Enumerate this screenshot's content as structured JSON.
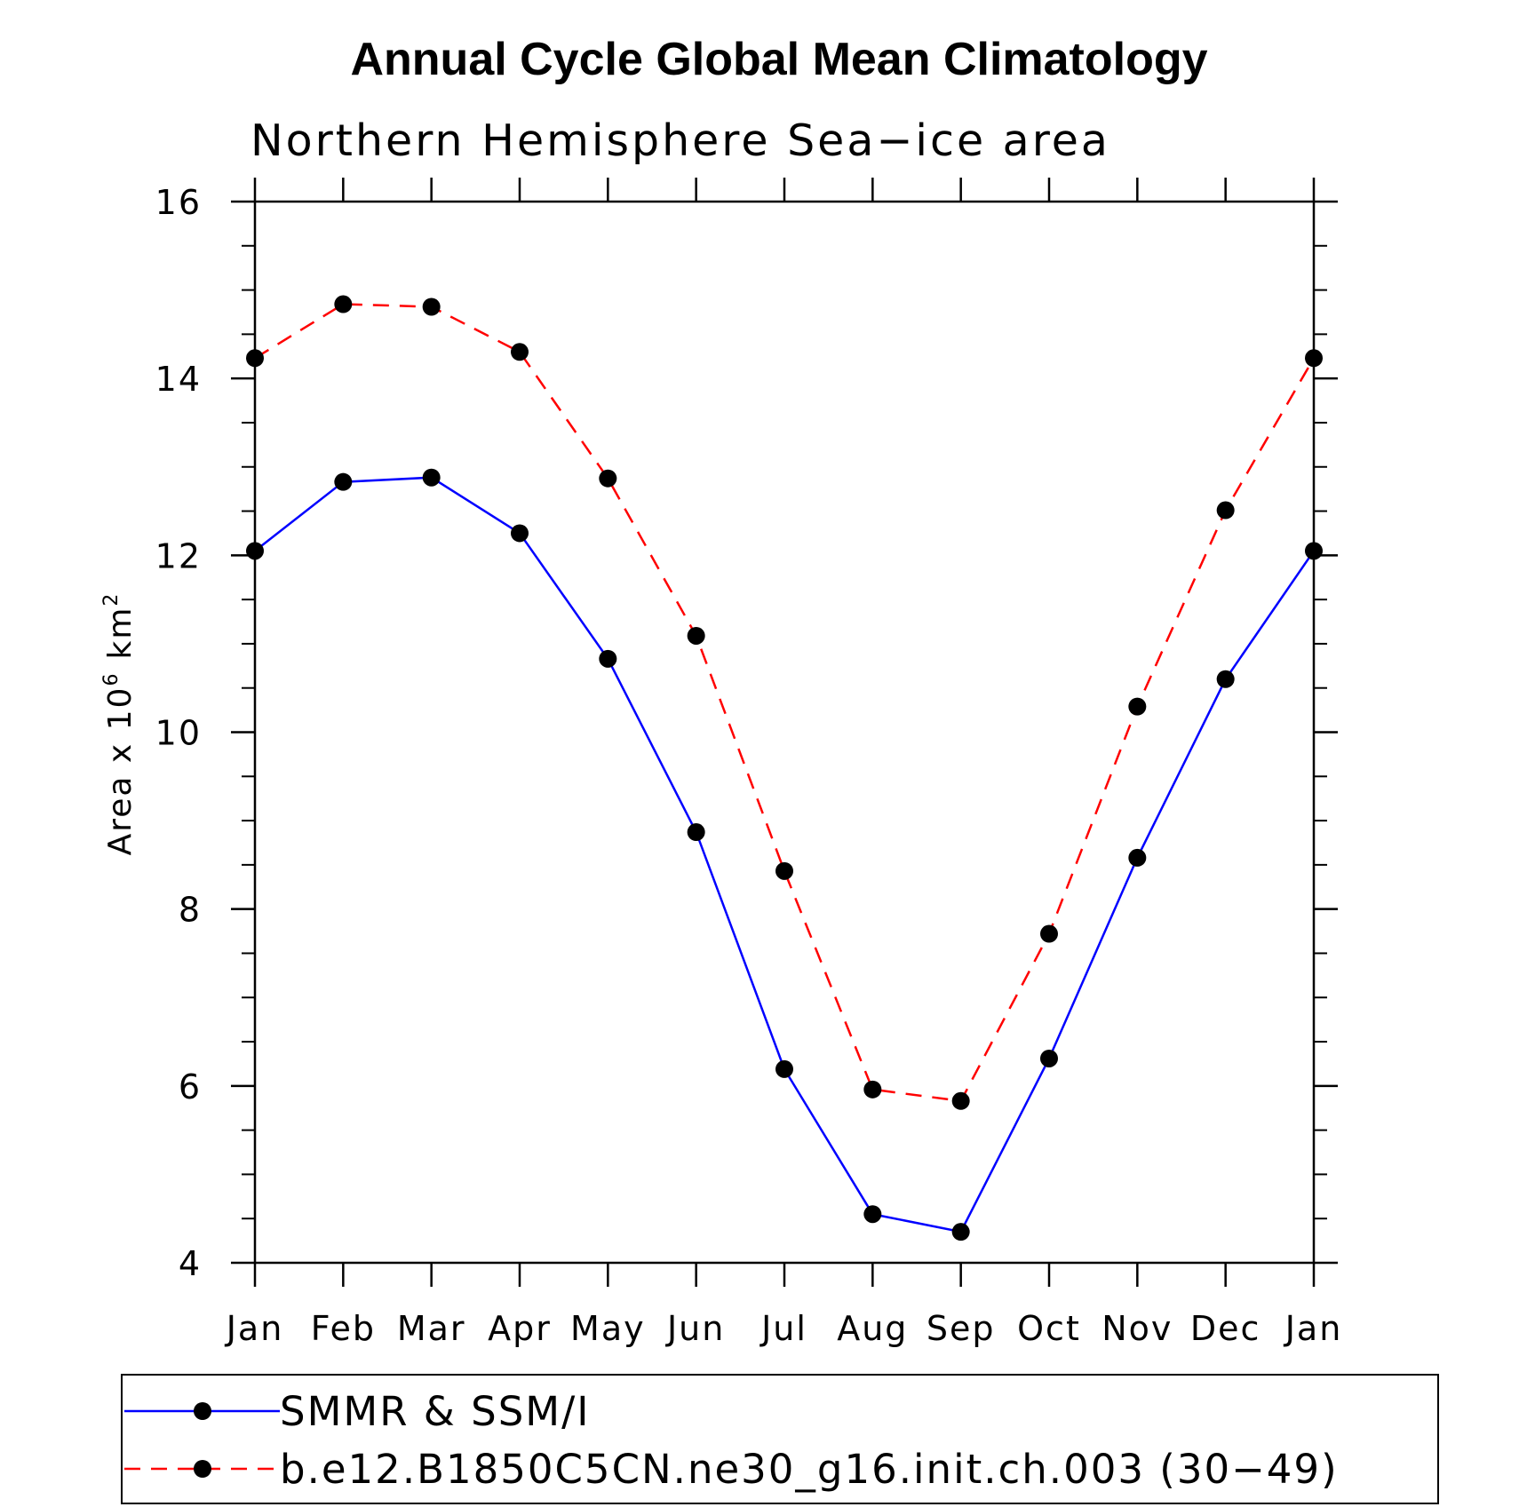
{
  "chart_data": {
    "type": "line",
    "title": "Annual Cycle Global Mean Climatology",
    "subtitle": "Northern Hemisphere Sea−ice area",
    "ylabel": "Area x 10",
    "ylabel_exponent": "6",
    "ylabel_unit": "km",
    "ylabel_unit_exponent": "2",
    "categories": [
      "Jan",
      "Feb",
      "Mar",
      "Apr",
      "May",
      "Jun",
      "Jul",
      "Aug",
      "Sep",
      "Oct",
      "Nov",
      "Dec",
      "Jan"
    ],
    "ylim": [
      4,
      16
    ],
    "yticks": [
      4,
      6,
      8,
      10,
      12,
      14,
      16
    ],
    "ytick_labels": [
      "4",
      "6",
      "8",
      "10",
      "12",
      "14",
      "16"
    ],
    "grid": false,
    "legend_position": "bottom",
    "series": [
      {
        "name": "SMMR & SSM/I",
        "color": "#0000ff",
        "line_style": "solid",
        "marker": "filled-circle",
        "values": [
          12.05,
          12.83,
          12.88,
          12.25,
          10.83,
          8.87,
          6.19,
          4.55,
          4.35,
          6.31,
          8.58,
          10.6,
          12.05
        ]
      },
      {
        "name": "b.e12.B1850C5CN.ne30_g16.init.ch.003 (30−49)",
        "color": "#ff0000",
        "line_style": "dashed",
        "marker": "filled-circle",
        "values": [
          14.23,
          14.84,
          14.81,
          14.3,
          12.87,
          11.09,
          8.43,
          5.96,
          5.83,
          7.72,
          10.29,
          12.51,
          14.23
        ]
      }
    ]
  }
}
